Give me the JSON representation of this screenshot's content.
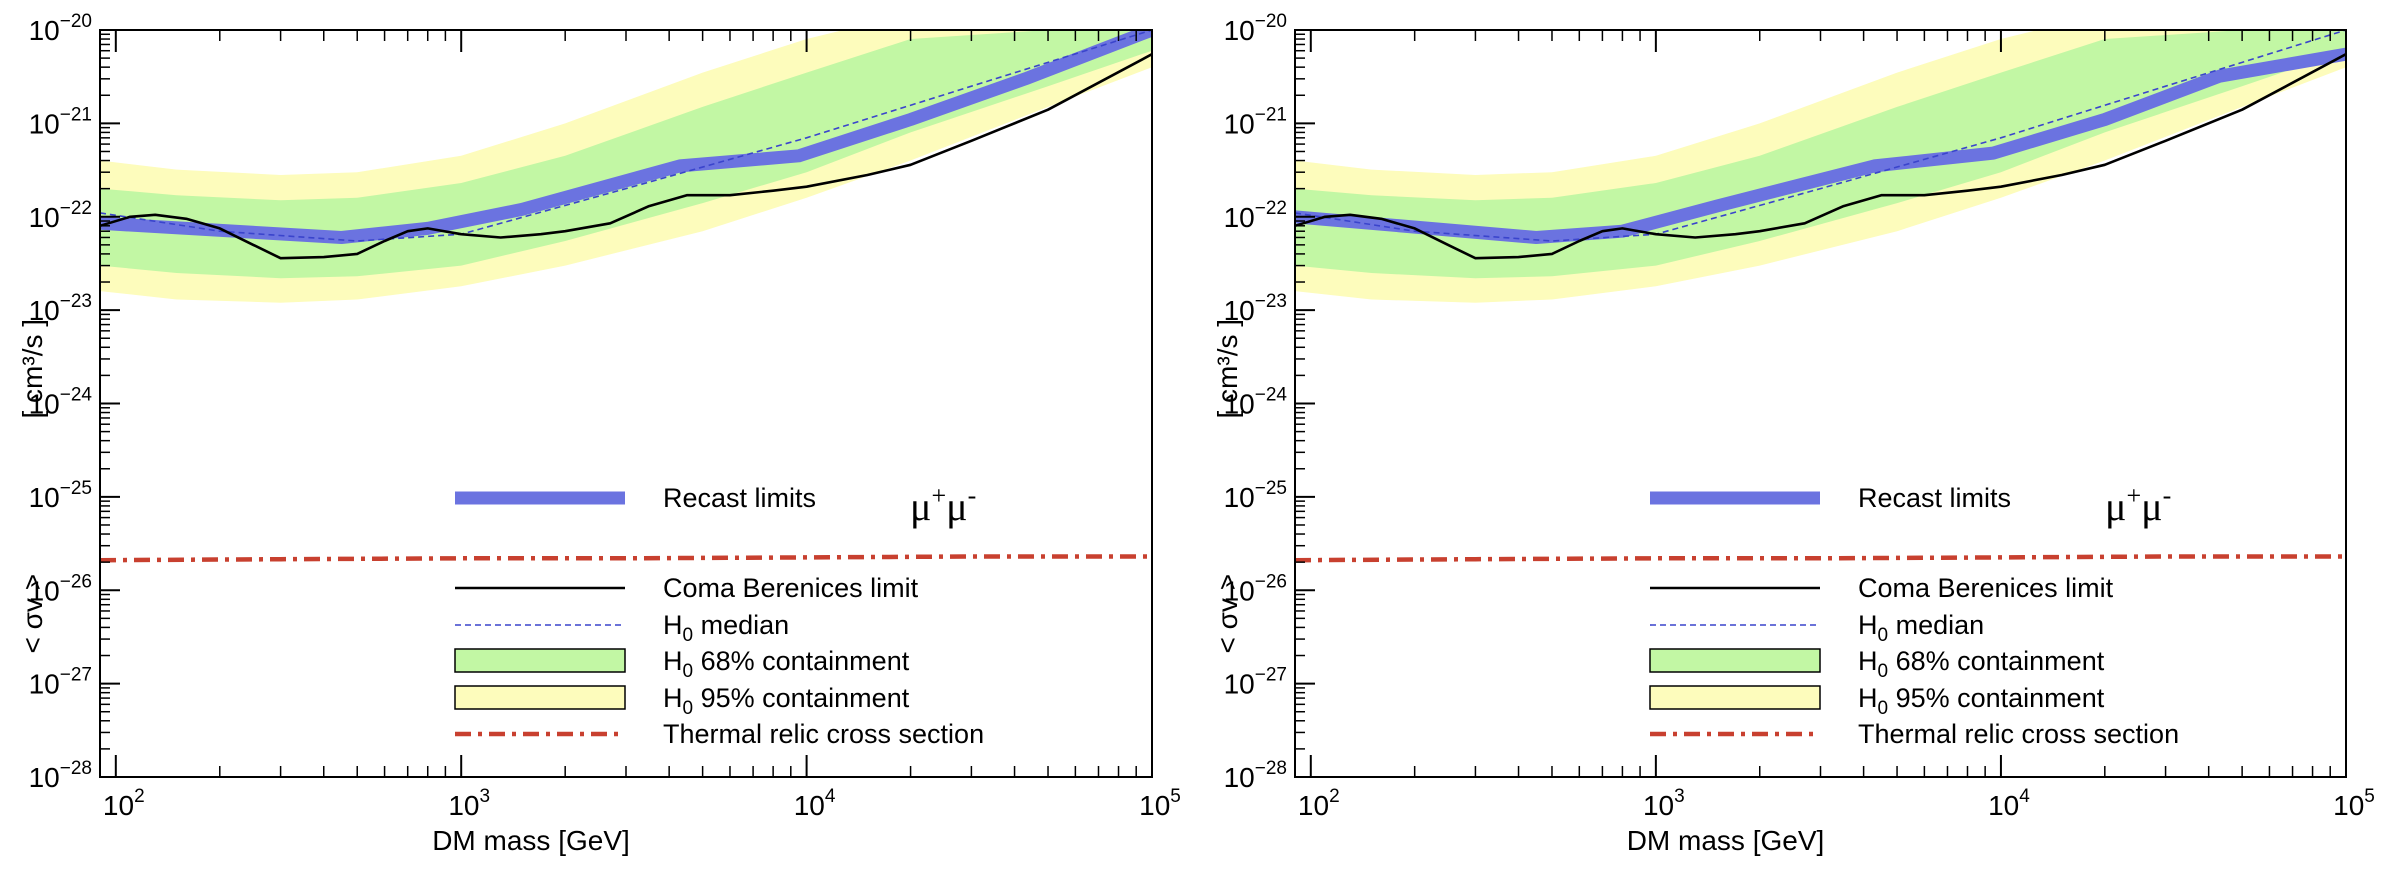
{
  "colors": {
    "recast": "#6b73e0",
    "coma": "#000000",
    "median": "#3a44cc",
    "band68": "#c2f7a4",
    "band95": "#fdfcbc",
    "thermal": "#c8402f"
  },
  "chart_data": [
    {
      "type": "line",
      "xlabel": "DM mass  [GeV]",
      "ylabel_left": "< σv >",
      "ylabel_right": "[ cm³/s ]",
      "xscale": "log",
      "yscale": "log",
      "xlim": [
        90,
        100000
      ],
      "ylim": [
        1e-28,
        1e-20
      ],
      "x_ticks": [
        {
          "base": "10",
          "exp": "2"
        },
        {
          "base": "10",
          "exp": "3"
        },
        {
          "base": "10",
          "exp": "4"
        },
        {
          "base": "10",
          "exp": "5"
        }
      ],
      "y_ticks": [
        {
          "base": "10",
          "exp": "−20"
        },
        {
          "base": "10",
          "exp": "−21"
        },
        {
          "base": "10",
          "exp": "−22"
        },
        {
          "base": "10",
          "exp": "−23"
        },
        {
          "base": "10",
          "exp": "−24"
        },
        {
          "base": "10",
          "exp": "−25"
        },
        {
          "base": "10",
          "exp": "−26"
        },
        {
          "base": "10",
          "exp": "−27"
        },
        {
          "base": "10",
          "exp": "−28"
        }
      ],
      "channel": {
        "base": "μ",
        "sup1": "+",
        "base2": "μ",
        "sup2": "-"
      },
      "legend": {
        "recast": "Recast limits",
        "coma": "Coma Berenices limit",
        "median_pre": "H",
        "median_sub": "0",
        "median_post": " median",
        "band68_pre": "H",
        "band68_sub": "0",
        "band68_post": " 68% containment",
        "band95_pre": "H",
        "band95_sub": "0",
        "band95_post": " 95% containment",
        "thermal": "Thermal relic cross section"
      },
      "series": [
        {
          "key": "band95",
          "x": [
            90,
            150,
            300,
            500,
            1000,
            2000,
            5000,
            10000,
            20000,
            50000,
            100000
          ],
          "lower": [
            1.6e-23,
            1.3e-23,
            1.2e-23,
            1.3e-23,
            1.8e-23,
            3e-23,
            7e-23,
            1.6e-22,
            4e-22,
            1.5e-21,
            4e-21
          ],
          "upper": [
            4e-22,
            3.2e-22,
            2.8e-22,
            3e-22,
            4.5e-22,
            1e-21,
            3.5e-21,
            8e-21,
            1.5e-20,
            1e-20,
            1e-20
          ]
        },
        {
          "key": "band68",
          "x": [
            90,
            150,
            300,
            500,
            1000,
            2000,
            5000,
            10000,
            20000,
            50000,
            100000
          ],
          "lower": [
            3e-23,
            2.5e-23,
            2.2e-23,
            2.3e-23,
            3e-23,
            5.5e-23,
            1.4e-22,
            3e-22,
            8e-22,
            2.5e-21,
            6e-21
          ],
          "upper": [
            2e-22,
            1.7e-22,
            1.5e-22,
            1.6e-22,
            2.3e-22,
            4.5e-22,
            1.5e-21,
            3.5e-21,
            8e-21,
            1e-20,
            1e-20
          ]
        },
        {
          "key": "median",
          "x": [
            90,
            200,
            500,
            1000,
            3000,
            10000,
            30000,
            100000
          ],
          "y": [
            1.1e-22,
            7e-23,
            5.5e-23,
            6.5e-23,
            2e-22,
            7e-22,
            2.5e-21,
            1e-20
          ]
        },
        {
          "key": "coma",
          "x": [
            90,
            110,
            130,
            160,
            200,
            250,
            300,
            400,
            500,
            600,
            700,
            800,
            1000,
            1300,
            1700,
            2000,
            2700,
            3500,
            4500,
            6000,
            8000,
            10000,
            15000,
            20000,
            30000,
            50000,
            100000
          ],
          "y": [
            8e-23,
            1e-22,
            1.05e-22,
            9.5e-23,
            7.5e-23,
            5e-23,
            3.6e-23,
            3.7e-23,
            4e-23,
            5.5e-23,
            7e-23,
            7.5e-23,
            6.5e-23,
            6e-23,
            6.5e-23,
            7e-23,
            8.5e-23,
            1.3e-22,
            1.7e-22,
            1.7e-22,
            1.9e-22,
            2.1e-22,
            2.8e-22,
            3.6e-22,
            6.5e-22,
            1.4e-21,
            5.5e-21
          ]
        },
        {
          "key": "thermal",
          "x": [
            90,
            300,
            1000,
            3000,
            10000,
            30000,
            100000
          ],
          "y": [
            2.1e-26,
            2.15e-26,
            2.2e-26,
            2.2e-26,
            2.25e-26,
            2.3e-26,
            2.3e-26
          ]
        },
        {
          "key": "recast",
          "x": [
            90,
            450,
            800,
            1500,
            4300,
            9500,
            20000,
            43000,
            100000
          ],
          "y": [
            8.5e-23,
            6e-23,
            7.5e-23,
            1.2e-22,
            3.5e-22,
            4.5e-22,
            1.1e-21,
            3e-21,
            1e-20
          ]
        }
      ]
    },
    {
      "type": "line",
      "xlabel": "DM mass  [GeV]",
      "ylabel_left": "< σv >",
      "ylabel_right": "[ cm³/s ]",
      "xscale": "log",
      "yscale": "log",
      "xlim": [
        90,
        100000
      ],
      "ylim": [
        1e-28,
        1e-20
      ],
      "x_ticks": [
        {
          "base": "10",
          "exp": "2"
        },
        {
          "base": "10",
          "exp": "3"
        },
        {
          "base": "10",
          "exp": "4"
        },
        {
          "base": "10",
          "exp": "5"
        }
      ],
      "y_ticks": [
        {
          "base": "10",
          "exp": "−20"
        },
        {
          "base": "10",
          "exp": "−21"
        },
        {
          "base": "10",
          "exp": "−22"
        },
        {
          "base": "10",
          "exp": "−23"
        },
        {
          "base": "10",
          "exp": "−24"
        },
        {
          "base": "10",
          "exp": "−25"
        },
        {
          "base": "10",
          "exp": "−26"
        },
        {
          "base": "10",
          "exp": "−27"
        },
        {
          "base": "10",
          "exp": "−28"
        }
      ],
      "channel": {
        "base": "μ",
        "sup1": "+",
        "base2": "μ",
        "sup2": "-"
      },
      "legend": {
        "recast": "Recast limits",
        "coma": "Coma Berenices limit",
        "median_pre": "H",
        "median_sub": "0",
        "median_post": " median",
        "band68_pre": "H",
        "band68_sub": "0",
        "band68_post": " 68% containment",
        "band95_pre": "H",
        "band95_sub": "0",
        "band95_post": " 95% containment",
        "thermal": "Thermal relic cross section"
      },
      "series": [
        {
          "key": "band95",
          "x": [
            90,
            150,
            300,
            500,
            1000,
            2000,
            5000,
            10000,
            20000,
            50000,
            100000
          ],
          "lower": [
            1.6e-23,
            1.3e-23,
            1.2e-23,
            1.3e-23,
            1.8e-23,
            3e-23,
            7e-23,
            1.6e-22,
            4e-22,
            1.5e-21,
            4e-21
          ],
          "upper": [
            4e-22,
            3.2e-22,
            2.8e-22,
            3e-22,
            4.5e-22,
            1e-21,
            3.5e-21,
            8e-21,
            1.5e-20,
            1e-20,
            1e-20
          ]
        },
        {
          "key": "band68",
          "x": [
            90,
            150,
            300,
            500,
            1000,
            2000,
            5000,
            10000,
            20000,
            50000,
            100000
          ],
          "lower": [
            3e-23,
            2.5e-23,
            2.2e-23,
            2.3e-23,
            3e-23,
            5.5e-23,
            1.4e-22,
            3e-22,
            8e-22,
            2.5e-21,
            6e-21
          ],
          "upper": [
            2e-22,
            1.7e-22,
            1.5e-22,
            1.6e-22,
            2.3e-22,
            4.5e-22,
            1.5e-21,
            3.5e-21,
            8e-21,
            1e-20,
            1e-20
          ]
        },
        {
          "key": "median",
          "x": [
            90,
            200,
            500,
            1000,
            3000,
            10000,
            30000,
            100000
          ],
          "y": [
            1.1e-22,
            7e-23,
            5.5e-23,
            6.5e-23,
            2e-22,
            7e-22,
            2.5e-21,
            1e-20
          ]
        },
        {
          "key": "coma",
          "x": [
            90,
            110,
            130,
            160,
            200,
            250,
            300,
            400,
            500,
            600,
            700,
            800,
            1000,
            1300,
            1700,
            2000,
            2700,
            3500,
            4500,
            6000,
            8000,
            10000,
            15000,
            20000,
            30000,
            50000,
            100000
          ],
          "y": [
            8e-23,
            1e-22,
            1.05e-22,
            9.5e-23,
            7.5e-23,
            5e-23,
            3.6e-23,
            3.7e-23,
            4e-23,
            5.5e-23,
            7e-23,
            7.5e-23,
            6.5e-23,
            6e-23,
            6.5e-23,
            7e-23,
            8.5e-23,
            1.3e-22,
            1.7e-22,
            1.7e-22,
            1.9e-22,
            2.1e-22,
            2.8e-22,
            3.6e-22,
            6.5e-22,
            1.4e-21,
            5.5e-21
          ]
        },
        {
          "key": "thermal",
          "x": [
            90,
            300,
            1000,
            3000,
            10000,
            30000,
            100000
          ],
          "y": [
            2.1e-26,
            2.15e-26,
            2.2e-26,
            2.2e-26,
            2.25e-26,
            2.3e-26,
            2.3e-26
          ]
        },
        {
          "key": "recast",
          "x": [
            90,
            450,
            800,
            1500,
            4300,
            9500,
            20000,
            43000,
            100000
          ],
          "y": [
            1e-22,
            6e-23,
            7e-23,
            1.3e-22,
            3.5e-22,
            4.8e-22,
            1.1e-21,
            3.2e-21,
            5.5e-21
          ]
        }
      ]
    }
  ]
}
